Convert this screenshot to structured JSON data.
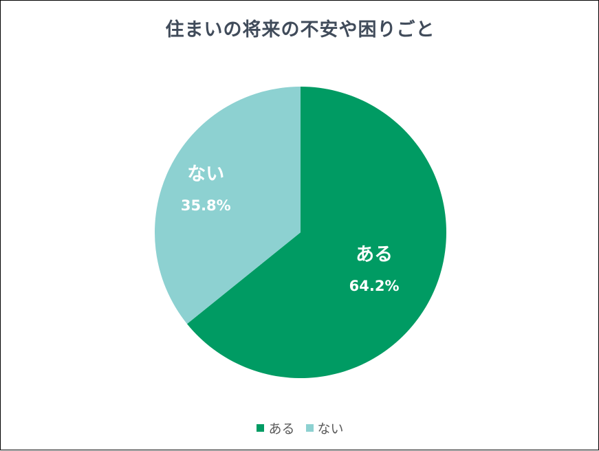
{
  "chart_data": {
    "type": "pie",
    "title": "住まいの将来の不安や困りごと",
    "categories": [
      "ある",
      "ない"
    ],
    "values": [
      64.2,
      35.8
    ],
    "value_labels": [
      "64.2%",
      "35.8%"
    ],
    "colors": [
      "#009b63",
      "#8dd1d1"
    ],
    "start_angle": "12 o'clock",
    "direction": "clockwise",
    "legend_position": "bottom"
  }
}
